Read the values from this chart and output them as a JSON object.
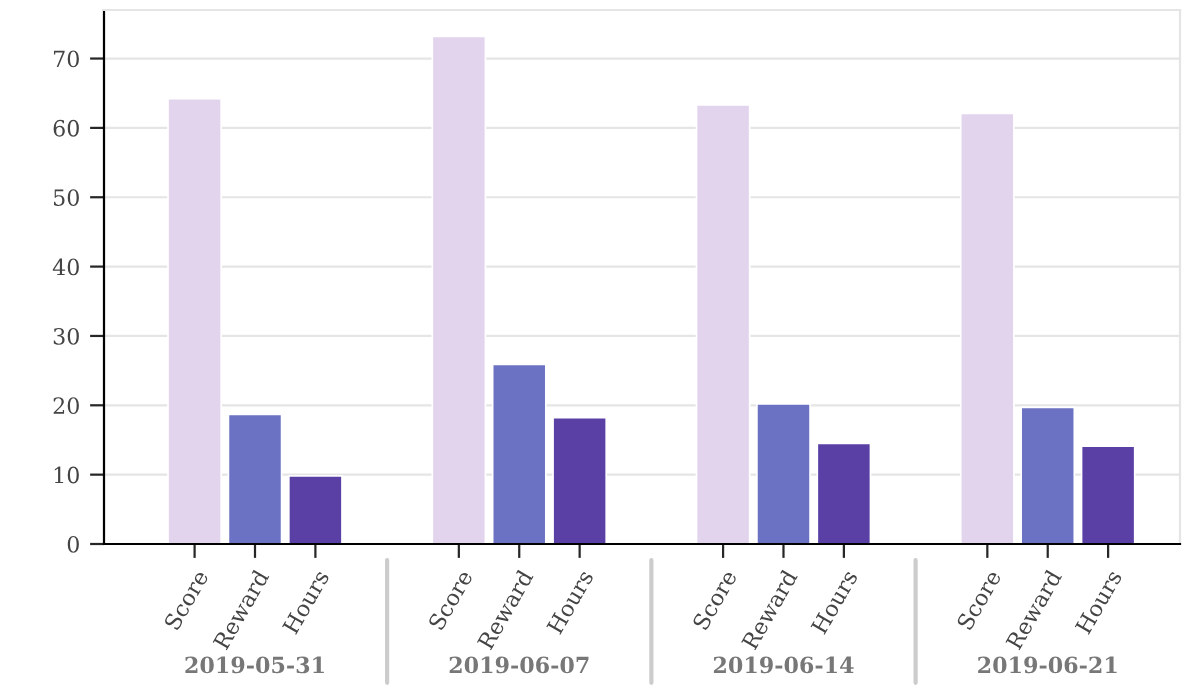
{
  "chart_data": {
    "type": "bar",
    "categories": [
      "2019-05-31",
      "2019-06-07",
      "2019-06-14",
      "2019-06-21"
    ],
    "series": [
      {
        "name": "Score",
        "color": "#e3d4ee",
        "values": [
          64.2,
          73.2,
          63.3,
          62.1
        ]
      },
      {
        "name": "Reward",
        "color": "#6b72c3",
        "values": [
          18.7,
          25.9,
          20.2,
          19.7
        ]
      },
      {
        "name": "Hours",
        "color": "#5a3fa5",
        "values": [
          9.8,
          18.2,
          14.5,
          14.1
        ]
      }
    ],
    "ylim": [
      0,
      77
    ],
    "yticks": [
      0,
      10,
      20,
      30,
      40,
      50,
      60,
      70
    ],
    "grid": "y",
    "legend": false
  }
}
